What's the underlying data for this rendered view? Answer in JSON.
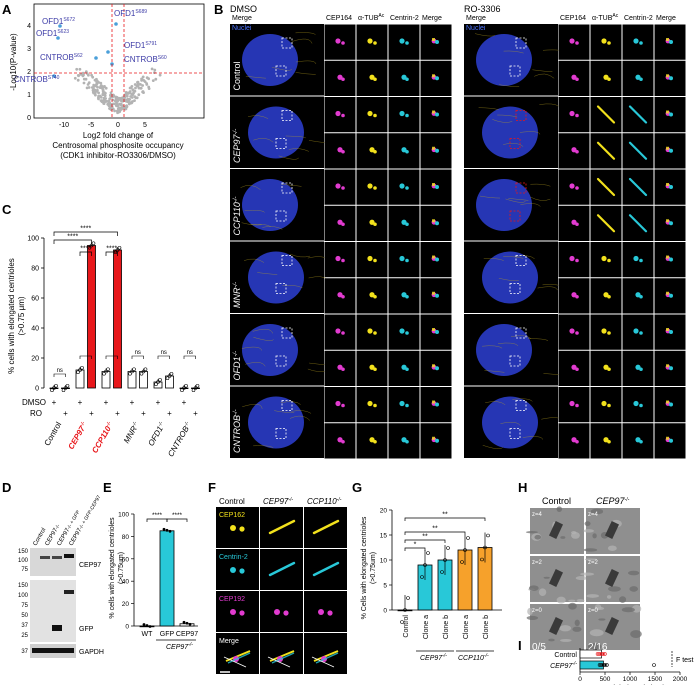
{
  "panel_letters": [
    "A",
    "B",
    "C",
    "D",
    "E",
    "F",
    "G",
    "H",
    "I"
  ],
  "colors": {
    "magenta": "#e23bd0",
    "yellow": "#f2e11c",
    "cyan": "#28c8d8",
    "blue": "#2a3cc8",
    "red": "#e8171b",
    "orange": "#f6a12b",
    "purple_label": "#3b3aa6",
    "volcano_gray": "#b3b3b3"
  },
  "panelA": {
    "ylabel": "-Log10(P-value)",
    "xlabel_line1": "Log2 fold change of",
    "xlabel_line2": "Centrosomal phosphosite occupancy",
    "xlabel_line3": "(CDK1 inhibitor-RO3306/DMSO)",
    "xticks": [
      "-10",
      "-5",
      "0",
      "5"
    ],
    "yticks": [
      "0",
      "1",
      "2",
      "3",
      "4"
    ],
    "labels": [
      "OFD1",
      "OFD1",
      "OFD1",
      "OFD1",
      "CNTROB",
      "CNTROB",
      "CNTROB"
    ],
    "sups": [
      "S672",
      "S623",
      "S689",
      "S791",
      "S62",
      "S60",
      "S740"
    ]
  },
  "panelB": {
    "left_condition": "DMSO",
    "right_condition": "RO-3306",
    "col_headers": [
      "Merge",
      "CEP164",
      "α-TUB",
      "Centrin-2",
      "Merge"
    ],
    "col_header_sup": "Ac",
    "merge_sub": "Nuclei",
    "rows": [
      "Control",
      "CEP97",
      "CCP110",
      "MNR",
      "OFD1",
      "CNTROB"
    ],
    "row_sup": "-/-"
  },
  "panelC": {
    "ylabel_line1": "% cells with elongated centrioles",
    "ylabel_line2": "(>0.75 μm)",
    "yticks": [
      "0",
      "20",
      "40",
      "60",
      "80",
      "100"
    ],
    "row_dmso": "DMSO",
    "row_ro": "RO",
    "plus": "+",
    "groups": [
      "Control",
      "CEP97",
      "CCP110",
      "MNR",
      "OFD1",
      "CNTROB"
    ],
    "group_sup": "-/-",
    "sig": [
      "****",
      "****",
      "****",
      "****",
      "ns",
      "ns",
      "ns",
      "ns",
      "ns",
      "ns"
    ]
  },
  "panelD": {
    "lanes": [
      "Control",
      "CEP97",
      "CEP97",
      "CEP97"
    ],
    "lane_suffix": [
      "",
      "-/-",
      "-/- + GFP",
      "-/- + GFP-CEP97"
    ],
    "markers_top": [
      "150",
      "100",
      "75"
    ],
    "markers_mid": [
      "150",
      "100",
      "75",
      "50",
      "37",
      "25"
    ],
    "markers_bot": [
      "37"
    ],
    "bands": [
      "CEP97",
      "GFP",
      "GAPDH"
    ]
  },
  "panelE": {
    "ylabel_line1": "% cells with elongated centrioles",
    "ylabel_line2": "(>0.75um)",
    "yticks": [
      "0",
      "20",
      "40",
      "60",
      "80",
      "100"
    ],
    "groups": [
      "WT",
      "GFP",
      "CEP97"
    ],
    "subgroup": "CEP97",
    "subgroup_sup": "-/-",
    "sig": [
      "****",
      "****"
    ]
  },
  "panelF": {
    "cols": [
      "Control",
      "CEP97",
      "CCP110"
    ],
    "col_sup": "-/-",
    "rows": [
      "CEP162",
      "Centrin-2",
      "CEP192",
      "Merge"
    ]
  },
  "panelG": {
    "ylabel_line1": "% Cells with elongated centrioles",
    "ylabel_line2": "(>0.75um)",
    "yticks": [
      "0",
      "5",
      "10",
      "15",
      "20"
    ],
    "groups": [
      "Control",
      "Clone a",
      "Clone b",
      "Clone a",
      "Clone b"
    ],
    "subgroups": [
      "CEP97",
      "CCP110"
    ],
    "sub_sup": "-/-",
    "sig": [
      "*",
      "**",
      "**",
      "**"
    ]
  },
  "panelH": {
    "cols": [
      "Control",
      "CEP97"
    ],
    "col_sup": "-/-",
    "z_left": [
      "z=4",
      "z=2",
      "z=0"
    ],
    "z_right": [
      "z=4",
      "z=2",
      "z=0"
    ],
    "count_left": "0/5",
    "count_right": "2/16"
  },
  "panelI": {
    "rows": [
      "Control",
      "CEP97"
    ],
    "row_sup": "-/-",
    "xlabel": "Centriole length (nm)",
    "xticks": [
      "0",
      "500",
      "1000",
      "1500",
      "2000"
    ],
    "stat": "F test"
  },
  "chart_data": [
    {
      "panel": "C",
      "type": "bar",
      "categories": [
        "Control DMSO",
        "Control RO",
        "CEP97-/- DMSO",
        "CEP97-/- RO",
        "CCP110-/- DMSO",
        "CCP110-/- RO",
        "MNR-/- DMSO",
        "MNR-/- RO",
        "OFD1-/- DMSO",
        "OFD1-/- RO",
        "CNTROB-/- DMSO",
        "CNTROB-/- RO"
      ],
      "values": [
        0,
        0,
        12,
        95,
        11,
        92,
        11,
        11,
        4,
        8,
        0,
        0
      ],
      "ylim": [
        0,
        100
      ]
    },
    {
      "panel": "E",
      "type": "bar",
      "categories": [
        "WT",
        "GFP",
        "CEP97"
      ],
      "values": [
        0,
        85,
        2
      ],
      "ylim": [
        0,
        100
      ]
    },
    {
      "panel": "G",
      "type": "bar",
      "categories": [
        "Control",
        "CEP97-/- Clone a",
        "CEP97-/- Clone b",
        "CCP110-/- Clone a",
        "CCP110-/- Clone b"
      ],
      "values": [
        0,
        9,
        10,
        12,
        12.5
      ],
      "ylim": [
        0,
        20
      ]
    },
    {
      "panel": "I",
      "type": "bar",
      "categories": [
        "Control",
        "CEP97-/-"
      ],
      "values": [
        430,
        470
      ],
      "xlim": [
        0,
        2000
      ]
    }
  ]
}
